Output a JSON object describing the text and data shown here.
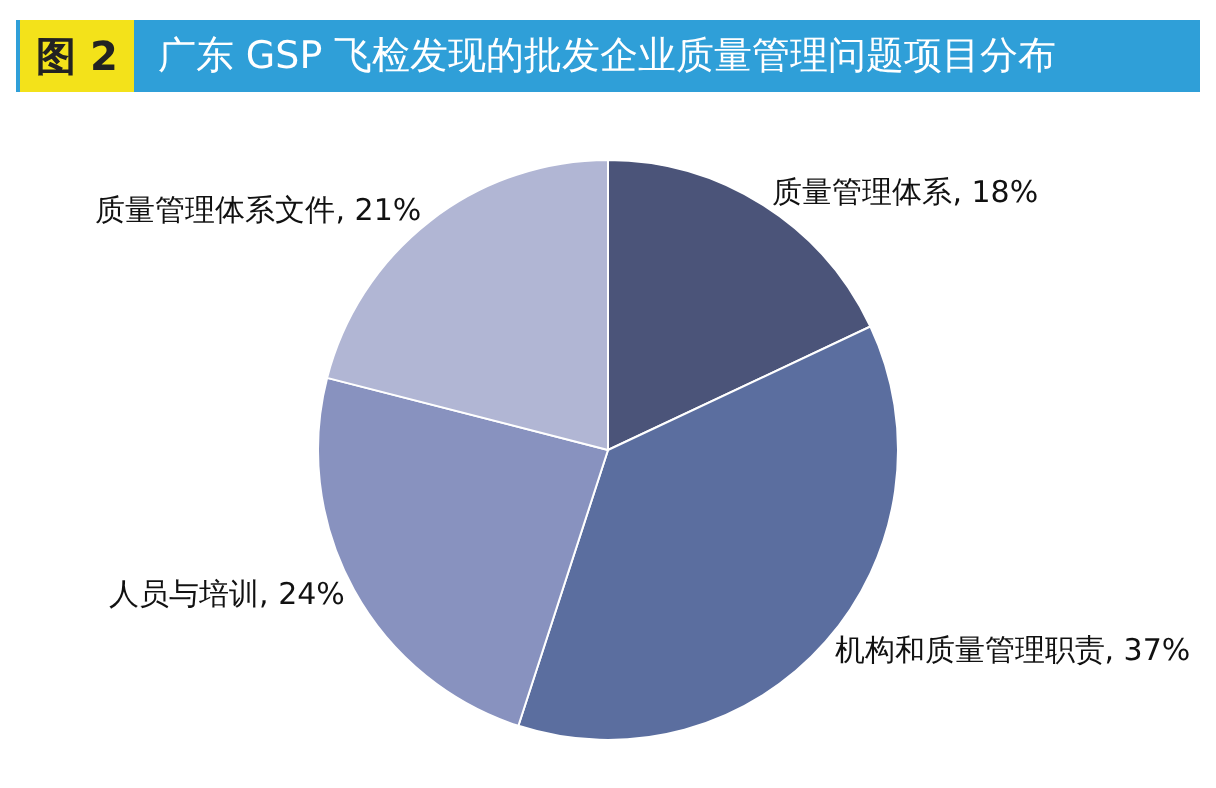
{
  "chart_data": {
    "type": "pie",
    "title": "广东 GSP 飞检发现的批发企业质量管理问题项目分布",
    "annotations": [
      "图 2"
    ],
    "categories": [
      "质量管理体系",
      "机构和质量管理职责",
      "人员与培训",
      "质量管理体系文件"
    ],
    "values": [
      18,
      37,
      24,
      21
    ],
    "value_labels": [
      "18%",
      "37%",
      "24%",
      "21%"
    ],
    "colors": [
      "#4b5479",
      "#5b6e9f",
      "#8892bf",
      "#b1b6d4"
    ],
    "legend": false
  }
}
